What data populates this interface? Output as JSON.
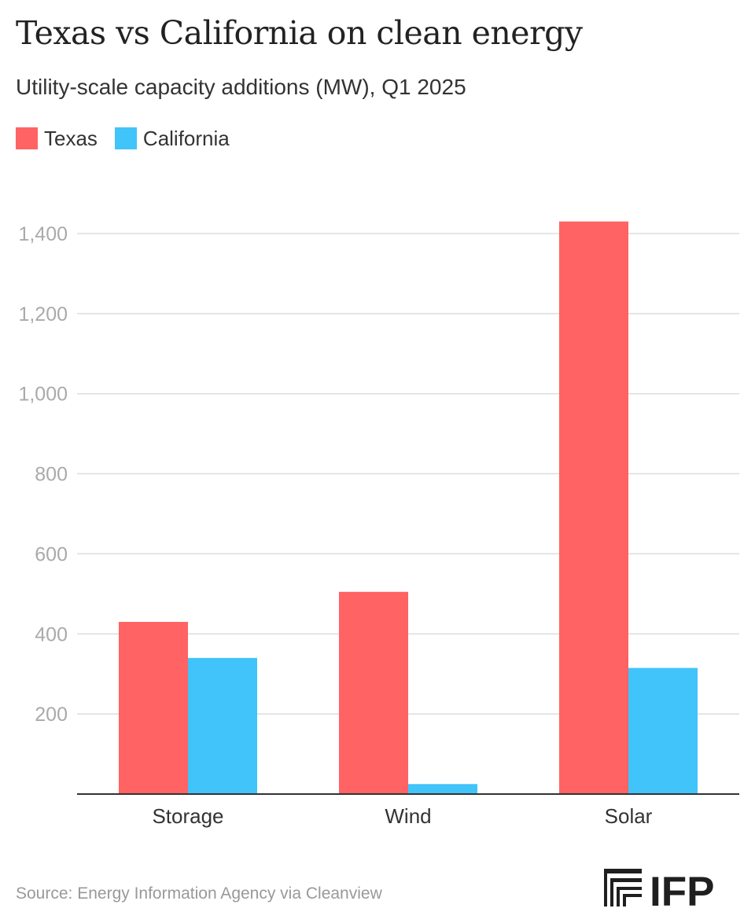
{
  "chart_data": {
    "type": "bar",
    "title": "Texas vs California on clean energy",
    "subtitle": "Utility-scale capacity additions (MW), Q1 2025",
    "categories": [
      "Storage",
      "Wind",
      "Solar"
    ],
    "series": [
      {
        "name": "Texas",
        "color": "#ff6363",
        "values": [
          430,
          505,
          1430
        ]
      },
      {
        "name": "California",
        "color": "#40c4fa",
        "values": [
          340,
          25,
          315
        ]
      }
    ],
    "yticks": [
      200,
      400,
      600,
      800,
      1000,
      1200,
      1400
    ],
    "ytick_labels": [
      "200",
      "400",
      "600",
      "800",
      "1,000",
      "1,200",
      "1,400"
    ],
    "ylim": [
      0,
      1500
    ],
    "grid": true,
    "legend_position": "top-left",
    "xlabel": "",
    "ylabel": ""
  },
  "footer": {
    "source": "Source: Energy Information Agency via Cleanview",
    "logo_text": "IFP",
    "logo_icon": "columns-logo-icon"
  }
}
